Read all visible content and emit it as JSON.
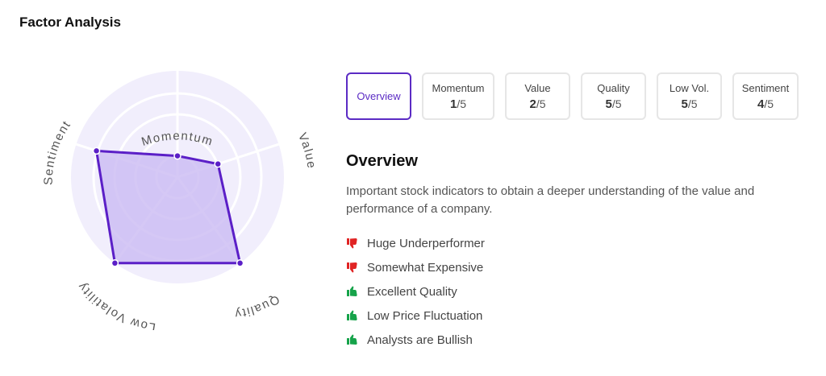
{
  "header": {
    "title": "Factor Analysis"
  },
  "radar": {
    "labels": {
      "momentum": "Momentum",
      "value": "Value",
      "quality": "Quality",
      "low_volatility": "Low Volatility",
      "sentiment": "Sentiment"
    },
    "max": 5,
    "scores": {
      "momentum": 1,
      "value": 2,
      "quality": 5,
      "low_volatility": 5,
      "sentiment": 4
    },
    "colors": {
      "fill": "#cbbaf2",
      "stroke": "#5b1fc7",
      "background": "#f1eefc",
      "grid": "#ffffff"
    }
  },
  "tabs": [
    {
      "label": "Overview",
      "active": true
    },
    {
      "label": "Momentum",
      "score": "1",
      "suffix": "/5"
    },
    {
      "label": "Value",
      "score": "2",
      "suffix": "/5"
    },
    {
      "label": "Quality",
      "score": "5",
      "suffix": "/5"
    },
    {
      "label": "Low Vol.",
      "score": "5",
      "suffix": "/5"
    },
    {
      "label": "Sentiment",
      "score": "4",
      "suffix": "/5"
    }
  ],
  "overview": {
    "title": "Overview",
    "description": "Important stock indicators to obtain a deeper understanding of the value and performance of a company.",
    "items": [
      {
        "text": "Huge Underperformer",
        "sentiment": "negative",
        "icon": "thumbs-down-icon"
      },
      {
        "text": "Somewhat Expensive",
        "sentiment": "negative",
        "icon": "thumbs-down-icon"
      },
      {
        "text": "Excellent Quality",
        "sentiment": "positive",
        "icon": "thumbs-up-icon"
      },
      {
        "text": "Low Price Fluctuation",
        "sentiment": "positive",
        "icon": "thumbs-up-icon"
      },
      {
        "text": "Analysts are Bullish",
        "sentiment": "positive",
        "icon": "thumbs-up-icon"
      }
    ],
    "colors": {
      "negative": "#e02424",
      "positive": "#16a34a"
    }
  }
}
